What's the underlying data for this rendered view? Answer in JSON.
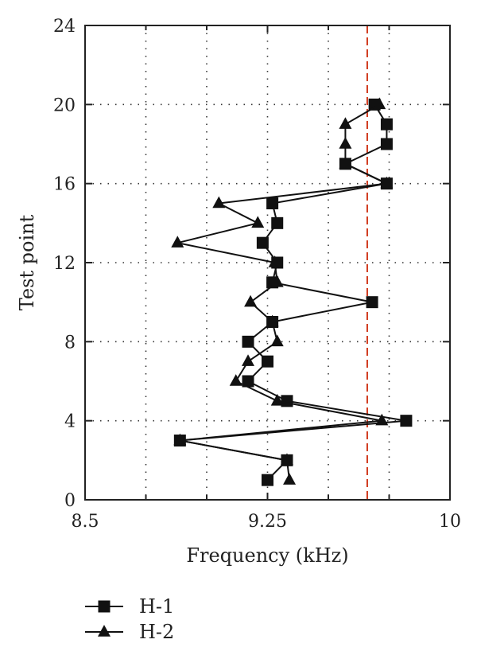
{
  "chart_data": {
    "type": "line",
    "title": "",
    "xlabel": "Frequency (kHz)",
    "ylabel": "Test point",
    "xlim": [
      8.5,
      10
    ],
    "ylim": [
      0,
      24
    ],
    "xticks": [
      8.5,
      9.25,
      10
    ],
    "xtick_labels": [
      "8.5",
      "9.25",
      "10"
    ],
    "yticks": [
      0,
      4,
      8,
      12,
      16,
      20,
      24
    ],
    "ytick_labels": [
      "0",
      "4",
      "8",
      "12",
      "16",
      "20",
      "24"
    ],
    "grid": "dotted",
    "reference_line": {
      "x": 9.66,
      "color": "#d03a1e",
      "style": "dashed"
    },
    "legend_position": "bottom-left",
    "series": [
      {
        "name": "H-1",
        "marker": "square",
        "points": [
          {
            "x": 9.25,
            "y": 1
          },
          {
            "x": 9.33,
            "y": 2
          },
          {
            "x": 8.89,
            "y": 3
          },
          {
            "x": 9.82,
            "y": 4
          },
          {
            "x": 9.33,
            "y": 5
          },
          {
            "x": 9.17,
            "y": 6
          },
          {
            "x": 9.25,
            "y": 7
          },
          {
            "x": 9.17,
            "y": 8
          },
          {
            "x": 9.27,
            "y": 9
          },
          {
            "x": 9.68,
            "y": 10
          },
          {
            "x": 9.27,
            "y": 11
          },
          {
            "x": 9.29,
            "y": 12
          },
          {
            "x": 9.23,
            "y": 13
          },
          {
            "x": 9.29,
            "y": 14
          },
          {
            "x": 9.27,
            "y": 15
          },
          {
            "x": 9.74,
            "y": 16
          },
          {
            "x": 9.57,
            "y": 17
          },
          {
            "x": 9.74,
            "y": 18
          },
          {
            "x": 9.74,
            "y": 19
          },
          {
            "x": 9.69,
            "y": 20
          }
        ]
      },
      {
        "name": "H-2",
        "marker": "triangle",
        "points": [
          {
            "x": 9.34,
            "y": 1
          },
          {
            "x": 9.33,
            "y": 2
          },
          {
            "x": 8.89,
            "y": 3
          },
          {
            "x": 9.72,
            "y": 4
          },
          {
            "x": 9.29,
            "y": 5
          },
          {
            "x": 9.12,
            "y": 6
          },
          {
            "x": 9.17,
            "y": 7
          },
          {
            "x": 9.29,
            "y": 8
          },
          {
            "x": 9.27,
            "y": 9
          },
          {
            "x": 9.18,
            "y": 10
          },
          {
            "x": 9.29,
            "y": 11
          },
          {
            "x": 9.28,
            "y": 12
          },
          {
            "x": 8.88,
            "y": 13
          },
          {
            "x": 9.21,
            "y": 14
          },
          {
            "x": 9.05,
            "y": 15
          },
          {
            "x": 9.74,
            "y": 16
          },
          {
            "x": 9.57,
            "y": 17
          },
          {
            "x": 9.57,
            "y": 18
          },
          {
            "x": 9.57,
            "y": 19
          },
          {
            "x": 9.71,
            "y": 20
          }
        ]
      }
    ]
  }
}
